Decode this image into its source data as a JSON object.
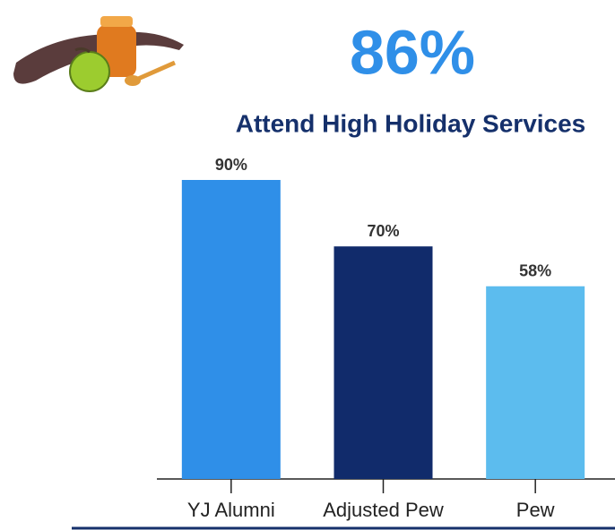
{
  "chart_data": {
    "type": "bar",
    "headline": "86%",
    "title": "Attend High Holiday Services",
    "categories": [
      "YJ Alumni",
      "Adjusted Pew",
      "Pew"
    ],
    "values": [
      90,
      70,
      58
    ],
    "value_labels": [
      "90%",
      "70%",
      "58%"
    ],
    "colors": [
      "#2f8fe8",
      "#112b6b",
      "#5cbcee"
    ],
    "ylim": [
      0,
      90
    ]
  }
}
